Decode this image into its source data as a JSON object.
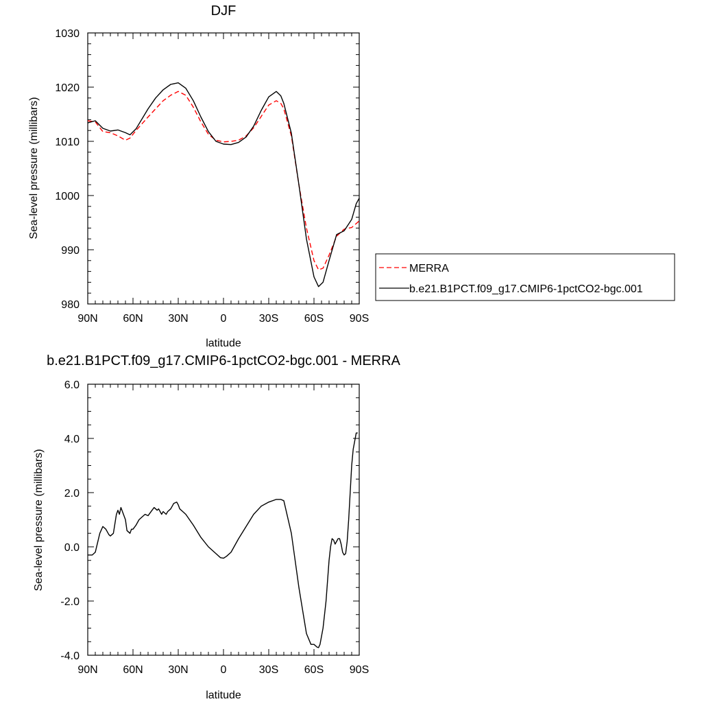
{
  "chart_data": [
    {
      "type": "line",
      "title": "DJF",
      "xlabel": "latitude",
      "ylabel": "Sea-level pressure (millibars)",
      "xlim": [
        90,
        -90
      ],
      "ylim": [
        980,
        1030
      ],
      "x_ticks": [
        {
          "value": 90,
          "label": "90N"
        },
        {
          "value": 60,
          "label": "60N"
        },
        {
          "value": 30,
          "label": "30N"
        },
        {
          "value": 0,
          "label": "0"
        },
        {
          "value": -30,
          "label": "30S"
        },
        {
          "value": -60,
          "label": "60S"
        },
        {
          "value": -90,
          "label": "90S"
        }
      ],
      "y_ticks": [
        {
          "value": 980,
          "label": "980"
        },
        {
          "value": 990,
          "label": "990"
        },
        {
          "value": 1000,
          "label": "1000"
        },
        {
          "value": 1010,
          "label": "1010"
        },
        {
          "value": 1020,
          "label": "1020"
        },
        {
          "value": 1030,
          "label": "1030"
        }
      ],
      "legend": "right",
      "series": [
        {
          "name": "MERRA",
          "color": "#ff0000",
          "dash": "dashed",
          "x": [
            90,
            85,
            80,
            75,
            70,
            65,
            62,
            58,
            50,
            45,
            40,
            35,
            30,
            25,
            20,
            15,
            10,
            5,
            0,
            -5,
            -10,
            -15,
            -20,
            -25,
            -30,
            -35,
            -38,
            -40,
            -45,
            -50,
            -55,
            -60,
            -63,
            -66,
            -70,
            -75,
            -80,
            -85,
            -90
          ],
          "y": [
            1013.8,
            1013.6,
            1011.8,
            1011.6,
            1011.0,
            1010.2,
            1010.6,
            1012.0,
            1014.5,
            1016.0,
            1017.5,
            1018.5,
            1019.2,
            1018.5,
            1016.3,
            1013.6,
            1011.3,
            1010.2,
            1009.9,
            1010.0,
            1010.2,
            1011.0,
            1012.5,
            1014.6,
            1016.7,
            1017.5,
            1017.0,
            1016.0,
            1011.0,
            1002.0,
            994.0,
            988.0,
            986.3,
            986.6,
            989.0,
            992.5,
            993.8,
            994.1,
            995.3
          ]
        },
        {
          "name": "b.e21.B1PCT.f09_g17.CMIP6-1pctCO2-bgc.001",
          "color": "#000000",
          "dash": "solid",
          "x": [
            90,
            85,
            80,
            75,
            70,
            65,
            62,
            58,
            50,
            45,
            40,
            35,
            30,
            25,
            20,
            15,
            10,
            5,
            0,
            -5,
            -10,
            -15,
            -20,
            -25,
            -30,
            -35,
            -38,
            -40,
            -45,
            -50,
            -55,
            -60,
            -63,
            -66,
            -70,
            -75,
            -80,
            -85,
            -88,
            -90
          ],
          "y": [
            1013.4,
            1013.8,
            1012.4,
            1011.9,
            1012.1,
            1011.6,
            1011.2,
            1012.3,
            1016.0,
            1018.0,
            1019.5,
            1020.5,
            1020.8,
            1019.8,
            1017.5,
            1014.5,
            1011.8,
            1010.0,
            1009.5,
            1009.4,
            1009.8,
            1010.8,
            1012.8,
            1015.7,
            1018.2,
            1019.2,
            1018.4,
            1017.0,
            1011.5,
            1002.0,
            992.0,
            985.0,
            983.2,
            984.0,
            988.0,
            992.8,
            993.5,
            995.6,
            998.5,
            999.5
          ]
        }
      ]
    },
    {
      "type": "line",
      "title": "b.e21.B1PCT.f09_g17.CMIP6-1pctCO2-bgc.001 - MERRA",
      "xlabel": "latitude",
      "ylabel": "Sea-level pressure (millibars)",
      "xlim": [
        90,
        -90
      ],
      "ylim": [
        -4.0,
        6.0
      ],
      "x_ticks": [
        {
          "value": 90,
          "label": "90N"
        },
        {
          "value": 60,
          "label": "60N"
        },
        {
          "value": 30,
          "label": "30N"
        },
        {
          "value": 0,
          "label": "0"
        },
        {
          "value": -30,
          "label": "30S"
        },
        {
          "value": -60,
          "label": "60S"
        },
        {
          "value": -90,
          "label": "90S"
        }
      ],
      "y_ticks": [
        {
          "value": -4.0,
          "label": "-4.0"
        },
        {
          "value": -2.0,
          "label": "-2.0"
        },
        {
          "value": 0.0,
          "label": "0.0"
        },
        {
          "value": 2.0,
          "label": "2.0"
        },
        {
          "value": 4.0,
          "label": "4.0"
        },
        {
          "value": 6.0,
          "label": "6.0"
        }
      ],
      "series": [
        {
          "name": "",
          "color": "#000000",
          "dash": "solid",
          "x": [
            90,
            87,
            85,
            82,
            80,
            78,
            76,
            75,
            73,
            71,
            70,
            69,
            68,
            67,
            65,
            64,
            62,
            61,
            60,
            58,
            56,
            54,
            52,
            50,
            48,
            46,
            44,
            43,
            41,
            40,
            38,
            37,
            35,
            33,
            31,
            30,
            29,
            27,
            25,
            20,
            15,
            10,
            5,
            2,
            0,
            -2,
            -5,
            -10,
            -15,
            -20,
            -25,
            -30,
            -35,
            -38,
            -40,
            -45,
            -50,
            -55,
            -58,
            -60,
            -62,
            -63,
            -64,
            -66,
            -68,
            -70,
            -71,
            -72,
            -73,
            -74,
            -75,
            -76,
            -77,
            -78,
            -79,
            -80,
            -81,
            -82,
            -83,
            -84,
            -85,
            -86,
            -87,
            -88,
            -89
          ],
          "y": [
            -0.3,
            -0.3,
            -0.2,
            0.5,
            0.75,
            0.65,
            0.45,
            0.4,
            0.5,
            1.2,
            1.35,
            1.2,
            1.45,
            1.3,
            1.0,
            0.6,
            0.5,
            0.65,
            0.65,
            0.8,
            1.0,
            1.1,
            1.2,
            1.15,
            1.3,
            1.45,
            1.35,
            1.4,
            1.2,
            1.3,
            1.2,
            1.3,
            1.4,
            1.6,
            1.65,
            1.55,
            1.4,
            1.3,
            1.2,
            0.8,
            0.35,
            0.0,
            -0.25,
            -0.4,
            -0.42,
            -0.35,
            -0.2,
            0.3,
            0.75,
            1.2,
            1.5,
            1.65,
            1.75,
            1.75,
            1.7,
            0.5,
            -1.5,
            -3.2,
            -3.6,
            -3.6,
            -3.7,
            -3.72,
            -3.6,
            -3.0,
            -2.0,
            -0.5,
            0.0,
            0.3,
            0.25,
            0.1,
            0.2,
            0.3,
            0.3,
            0.1,
            -0.2,
            -0.3,
            -0.25,
            0.2,
            1.0,
            2.0,
            3.0,
            3.6,
            3.9,
            4.2,
            4.2
          ]
        }
      ]
    }
  ]
}
